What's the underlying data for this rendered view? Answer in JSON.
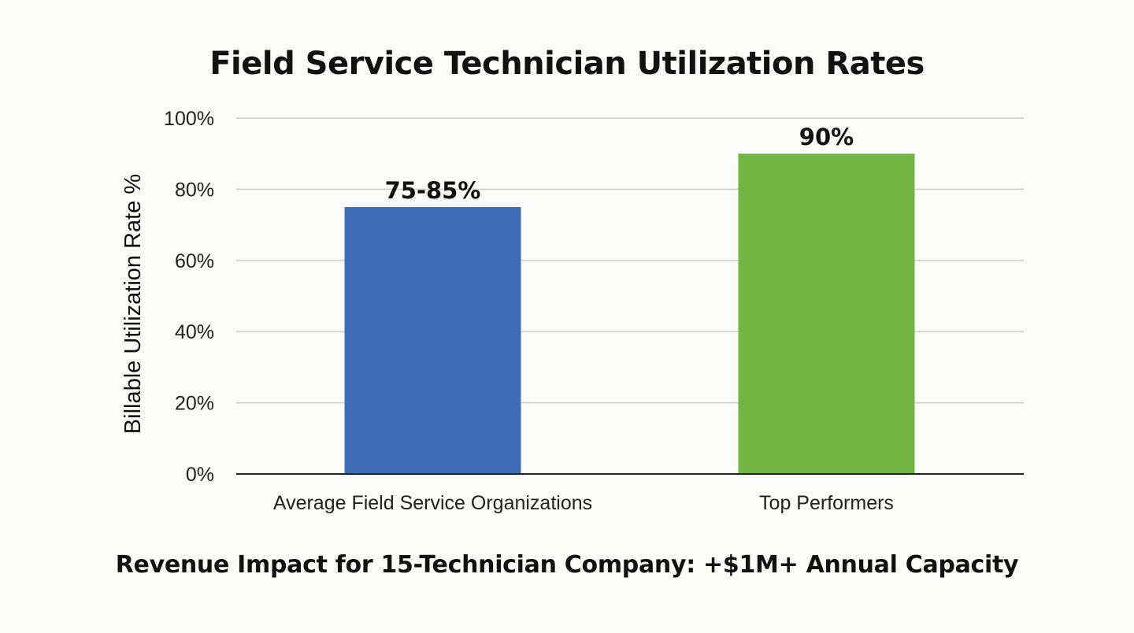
{
  "chart_data": {
    "type": "bar",
    "title": "Field Service Technician Utilization Rates",
    "ylabel": "Billable Utilization Rate %",
    "xlabel": "",
    "ylim": [
      0,
      100
    ],
    "yticks": [
      "0%",
      "20%",
      "40%",
      "60%",
      "80%",
      "100%"
    ],
    "ytick_values": [
      0,
      20,
      40,
      60,
      80,
      100
    ],
    "grid": true,
    "categories": [
      "Average Field Service Organizations",
      "Top Performers"
    ],
    "values": [
      75,
      90
    ],
    "data_labels": [
      "75-85%",
      "90%"
    ],
    "colors": [
      "#3e6fb6",
      "#71b444"
    ]
  },
  "footer": {
    "text": "Revenue Impact for 15-Technician Company: +$1M+ Annual Capacity"
  },
  "colors": {
    "background": "#fbfbf9",
    "gridline": "#cfcfcf",
    "axis": "#222222"
  }
}
